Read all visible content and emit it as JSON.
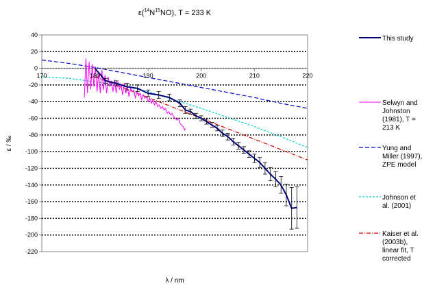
{
  "chart_data": {
    "type": "line",
    "title": {
      "prefix": "ε(",
      "sup1": "14",
      "mid1": "N",
      "sup2": "15",
      "mid2": "NO), T = 233 K"
    },
    "xlabel": "λ / nm",
    "ylabel": "ε / ‰",
    "xlim": [
      170,
      220
    ],
    "ylim": [
      -220,
      40
    ],
    "xticks": [
      "170",
      "180",
      "190",
      "200",
      "210",
      "220"
    ],
    "yticks": [
      "40",
      "20",
      "0",
      "-20",
      "-40",
      "-60",
      "-80",
      "-100",
      "-120",
      "-140",
      "-160",
      "-180",
      "-200",
      "-220"
    ],
    "grid": "horizontal dotted",
    "legend_position": "right",
    "series": [
      {
        "name": "This study",
        "color": "#000080",
        "style": "solid-thick",
        "x": [
          180,
          182,
          184,
          186,
          188,
          190,
          192,
          194,
          196,
          197,
          198,
          199,
          200,
          201,
          202,
          203,
          204,
          205,
          206,
          207,
          208,
          209,
          210,
          211,
          212,
          213,
          214,
          215,
          216,
          217,
          218
        ],
        "y": [
          0,
          -15,
          -18,
          -22,
          -24,
          -30,
          -32,
          -35,
          -42,
          -50,
          -52,
          -57,
          -60,
          -64,
          -68,
          -72,
          -78,
          -82,
          -88,
          -93,
          -98,
          -103,
          -108,
          -113,
          -120,
          -127,
          -133,
          -140,
          -152,
          -168,
          -167
        ],
        "err": [
          0,
          3,
          3,
          4,
          4,
          4,
          4,
          4,
          4,
          4,
          3,
          3,
          3,
          3,
          3,
          3,
          4,
          4,
          4,
          4,
          4,
          4,
          5,
          6,
          7,
          8,
          9,
          10,
          13,
          25,
          25
        ]
      },
      {
        "name": "Selwyn and Johnston (1981), T = 213 K",
        "color": "#ff00ff",
        "style": "solid-thin",
        "x": [
          178,
          178.3,
          178.6,
          178.9,
          179.2,
          179.5,
          179.8,
          180.1,
          180.4,
          180.7,
          181,
          181.3,
          181.6,
          181.9,
          182.2,
          182.5,
          182.8,
          183.1,
          183.4,
          183.7,
          184,
          184.3,
          184.6,
          184.9,
          185.2,
          185.5,
          185.8,
          186.1,
          186.4,
          186.7,
          187,
          187.3,
          187.6,
          187.9,
          188.2,
          188.5,
          188.8,
          189.1,
          189.4,
          189.7,
          190,
          190.3,
          190.6,
          190.9,
          191.2,
          191.5,
          191.8,
          192.1,
          192.4,
          192.7,
          193,
          193.3,
          193.6,
          193.9,
          194.2,
          194.5,
          194.8,
          195.1,
          195.4,
          195.7,
          196,
          196.3,
          196.6,
          196.9,
          197
        ],
        "y": [
          -35,
          12,
          -30,
          8,
          -25,
          5,
          -22,
          2,
          -28,
          -5,
          -30,
          -2,
          -26,
          -8,
          -30,
          -10,
          -22,
          -15,
          -28,
          -14,
          -30,
          -16,
          -25,
          -20,
          -32,
          -18,
          -30,
          -22,
          -34,
          -24,
          -28,
          -26,
          -36,
          -28,
          -33,
          -30,
          -38,
          -32,
          -36,
          -34,
          -40,
          -36,
          -42,
          -38,
          -44,
          -40,
          -46,
          -44,
          -48,
          -46,
          -50,
          -48,
          -54,
          -52,
          -56,
          -54,
          -58,
          -60,
          -62,
          -60,
          -66,
          -68,
          -70,
          -74,
          -72
        ]
      },
      {
        "name": "Yung and Miller (1997), ZPE model",
        "color": "#0000cc",
        "style": "dash",
        "x": [
          170,
          175,
          180,
          185,
          190,
          195,
          200,
          205,
          210,
          215,
          220
        ],
        "y": [
          10,
          6,
          1,
          -5,
          -11,
          -17,
          -23,
          -29,
          -35,
          -42,
          -48
        ]
      },
      {
        "name": "Johnson et al. (2001)",
        "color": "#00cccc",
        "style": "dash-short",
        "x": [
          170,
          175,
          180,
          185,
          190,
          195,
          200,
          205,
          210,
          215,
          220
        ],
        "y": [
          -10,
          -12,
          -16,
          -21,
          -28,
          -38,
          -48,
          -59,
          -70,
          -82,
          -95
        ]
      },
      {
        "name": "Kaiser et al. (2003b), linear fit, T corrected",
        "color": "#cc0000",
        "style": "dash-dot",
        "x": [
          180,
          220
        ],
        "y": [
          -10,
          -110
        ]
      }
    ]
  },
  "legend": [
    {
      "lines": [
        "This study"
      ]
    },
    {
      "lines": [
        "Selwyn and",
        "Johnston",
        "(1981), T =",
        "213 K"
      ]
    },
    {
      "lines": [
        "Yung and",
        "Miller (1997),",
        "ZPE model"
      ]
    },
    {
      "lines": [
        "Johnson et",
        "al. (2001)"
      ]
    },
    {
      "lines": [
        "Kaiser et al.",
        "(2003b),",
        "linear fit, T",
        "corrected"
      ]
    }
  ]
}
